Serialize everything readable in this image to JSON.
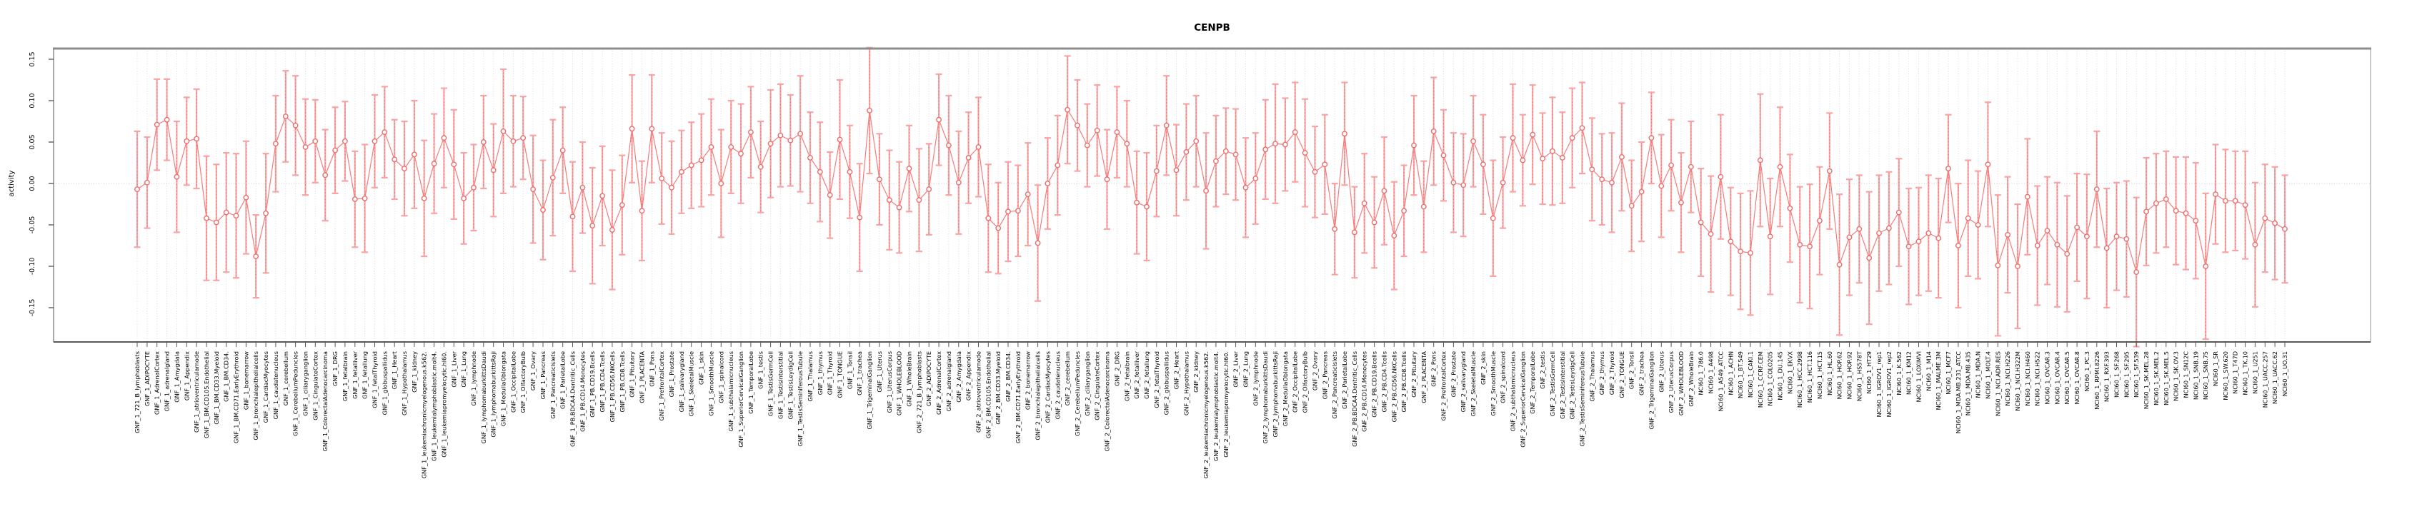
{
  "title": "CENPB",
  "chart_data": {
    "type": "line",
    "title": "CENPB",
    "ylabel": "activity",
    "ylim": [
      -0.186,
      0.163
    ],
    "yticks": [
      "-0.15",
      "-0.10",
      "-0.05",
      "0.00",
      "0.05",
      "0.10",
      "0.15"
    ],
    "ytick_values": [
      -0.15,
      -0.1,
      -0.05,
      0.0,
      0.05,
      0.1,
      0.15
    ],
    "grid": "vertical dotted line per category, dotted horizontal line at 0",
    "legend": "none",
    "marker": "open-circle with error bars",
    "colors": {
      "point": "#ef6a6a",
      "line": "#f47c7c",
      "error_bar": "#f9a4a4",
      "error_bar_dash": "#ef6767",
      "grid": "#d8d8d8",
      "zero_line": "#c9c9c9",
      "box": "#9a9a9a",
      "axis": "#404040",
      "text": "#000000"
    },
    "points": [
      [
        "GNF_1_721_B_lymphoblasts",
        -0.007,
        0.07
      ],
      [
        "GNF_1_ADIPOCYTE",
        0.001,
        0.055
      ],
      [
        "GNF_1_AdrenalCortex",
        0.071,
        0.055
      ],
      [
        "GNF_1_adrenalgland",
        0.077,
        0.049
      ],
      [
        "GNF_1_Amygdala",
        0.008,
        0.067
      ],
      [
        "GNF_1_Appendix",
        0.051,
        0.053
      ],
      [
        "GNF_1_atrioventricularnode",
        0.054,
        0.06
      ],
      [
        "GNF_1_BM.CD105.Endothelial",
        -0.042,
        0.075
      ],
      [
        "GNF_1_BM.CD33.Myeloid",
        -0.047,
        0.07
      ],
      [
        "GNF_1_BM.CD34.",
        -0.035,
        0.072
      ],
      [
        "GNF_1_BM.CD71.EarlyErythroid",
        -0.039,
        0.075
      ],
      [
        "GNF_1_bonemarrow",
        -0.017,
        0.068
      ],
      [
        "GNF_1_bronchialepithelialcells",
        -0.088,
        0.05
      ],
      [
        "GNF_1_CardiacMyocytes",
        -0.036,
        0.072
      ],
      [
        "GNF_1_caudatenucleus",
        0.048,
        0.058
      ],
      [
        "GNF_1_cerebellum",
        0.081,
        0.055
      ],
      [
        "GNF_1_CerebellumPeduncles",
        0.07,
        0.06
      ],
      [
        "GNF_1_ciliaryganglion",
        0.044,
        0.058
      ],
      [
        "GNF_1_CingulateCortex",
        0.051,
        0.05
      ],
      [
        "GNF_1_ColorectalAdenocarcinoma",
        0.01,
        0.055
      ],
      [
        "GNF_1_DRG",
        0.04,
        0.052
      ],
      [
        "GNF_1_fetalbrain",
        0.051,
        0.048
      ],
      [
        "GNF_1_fetalliver",
        -0.019,
        0.058
      ],
      [
        "GNF_1_fetallung",
        -0.018,
        0.065
      ],
      [
        "GNF_1_fetalThyroid",
        0.051,
        0.056
      ],
      [
        "GNF_1_globuspallidus",
        0.062,
        0.055
      ],
      [
        "GNF_1_Heart",
        0.029,
        0.048
      ],
      [
        "GNF_1_Hypothalamus",
        0.018,
        0.057
      ],
      [
        "GNF_1_kidney",
        0.035,
        0.065
      ],
      [
        "GNF_1_leukemiachronicmyelogenous.k562.",
        -0.018,
        0.07
      ],
      [
        "GNF_1_leukemialymphoblastic.molt4.",
        0.024,
        0.06
      ],
      [
        "GNF_1_leukemiapromyelocytic.hl60.",
        0.055,
        0.06
      ],
      [
        "GNF_1_Liver",
        0.023,
        0.066
      ],
      [
        "GNF_1_Lung",
        -0.018,
        0.055
      ],
      [
        "GNF_1_lymphnode",
        -0.005,
        0.052
      ],
      [
        "GNF_1_lymphomaburkittsDaudi",
        0.05,
        0.056
      ],
      [
        "GNF_1_lymphomaburkittsRaji",
        0.016,
        0.056
      ],
      [
        "GNF_1_MedullaOblongata",
        0.063,
        0.075
      ],
      [
        "GNF_1_OccipitalLobe",
        0.051,
        0.055
      ],
      [
        "GNF_1_OlfactoryBulb",
        0.055,
        0.05
      ],
      [
        "GNF_1_Ovary",
        -0.007,
        0.065
      ],
      [
        "GNF_1_Pancreas",
        -0.032,
        0.06
      ],
      [
        "GNF_1_PancreaticIslets",
        0.007,
        0.07
      ],
      [
        "GNF_1_ParietalLobe",
        0.04,
        0.052
      ],
      [
        "GNF_1_PB.BDCA4.Dentritic_Cells",
        -0.04,
        0.066
      ],
      [
        "GNF_1_PB.CD14.Monocytes",
        -0.005,
        0.055
      ],
      [
        "GNF_1_PB.CD19.Bcells",
        -0.051,
        0.07
      ],
      [
        "GNF_1_PB.CD4.Tcells",
        -0.015,
        0.06
      ],
      [
        "GNF_1_PB.CD56.NKCells",
        -0.056,
        0.072
      ],
      [
        "GNF_1_PB.CD8.Tcells",
        -0.026,
        0.06
      ],
      [
        "GNF_1_Pituitary",
        0.066,
        0.065
      ],
      [
        "GNF_1_PLACENTA",
        -0.033,
        0.06
      ],
      [
        "GNF_1_Pons",
        0.066,
        0.065
      ],
      [
        "GNF_1_PrefrontalCortex",
        0.006,
        0.055
      ],
      [
        "GNF_1_Prostate",
        -0.005,
        0.056
      ],
      [
        "GNF_1_salivarygland",
        0.014,
        0.05
      ],
      [
        "GNF_1_SkeletalMuscle",
        0.022,
        0.052
      ],
      [
        "GNF_1_skin",
        0.028,
        0.056
      ],
      [
        "GNF_1_SmoothMuscle",
        0.044,
        0.058
      ],
      [
        "GNF_1_spinalcord",
        0.0,
        0.065
      ],
      [
        "GNF_1_subthalamicnucleus",
        0.044,
        0.056
      ],
      [
        "GNF_1_SuperiorCervicalGanglion",
        0.036,
        0.06
      ],
      [
        "GNF_1_TemporalLobe",
        0.062,
        0.055
      ],
      [
        "GNF_1_testis",
        0.02,
        0.055
      ],
      [
        "GNF_1_TestisGermCell",
        0.048,
        0.065
      ],
      [
        "GNF_1_TestisInterstitial",
        0.058,
        0.062
      ],
      [
        "GNF_1_TestisLeydigCell",
        0.052,
        0.055
      ],
      [
        "GNF_1_TestisSeminiferousTubule",
        0.06,
        0.07
      ],
      [
        "GNF_1_Thalamus",
        0.031,
        0.055
      ],
      [
        "GNF_1_thymus",
        0.014,
        0.06
      ],
      [
        "GNF_1_Thyroid",
        -0.014,
        0.052
      ],
      [
        "GNF_1_TONGUE",
        0.053,
        0.072
      ],
      [
        "GNF_1_Tonsil",
        0.014,
        0.056
      ],
      [
        "GNF_1_trachea",
        -0.041,
        0.065
      ],
      [
        "GNF_1_TrigeminalGanglion",
        0.088,
        0.076
      ],
      [
        "GNF_1_Uterus",
        0.005,
        0.055
      ],
      [
        "GNF_1_UterusCorpus",
        -0.02,
        0.06
      ],
      [
        "GNF_1_WHOLEBLOOD",
        -0.029,
        0.055
      ],
      [
        "GNF_1_WholeBrain",
        0.018,
        0.052
      ],
      [
        "GNF_2_721_B_lymphoblasts",
        -0.02,
        0.062
      ],
      [
        "GNF_2_ADIPOCYTE",
        -0.007,
        0.055
      ],
      [
        "GNF_2_AdrenalCortex",
        0.077,
        0.055
      ],
      [
        "GNF_2_adrenalgland",
        0.046,
        0.06
      ],
      [
        "GNF_2_Amygdala",
        0.001,
        0.062
      ],
      [
        "GNF_2_Appendix",
        0.031,
        0.055
      ],
      [
        "GNF_2_atrioventricularnode",
        0.044,
        0.06
      ],
      [
        "GNF_2_BM.CD105.Endothelial",
        -0.042,
        0.065
      ],
      [
        "GNF_2_BM.CD33.Myeloid",
        -0.054,
        0.055
      ],
      [
        "GNF_2_BM.CD34.",
        -0.034,
        0.06
      ],
      [
        "GNF_2_BM.CD71.EarlyErythroid",
        -0.033,
        0.055
      ],
      [
        "GNF_2_bonemarrow",
        -0.013,
        0.062
      ],
      [
        "GNF_2_bronchialepithelialcells",
        -0.072,
        0.07
      ],
      [
        "GNF_2_CardiacMyocytes",
        0.0,
        0.055
      ],
      [
        "GNF_2_caudatenucleus",
        0.022,
        0.06
      ],
      [
        "GNF_2_cerebellum",
        0.089,
        0.065
      ],
      [
        "GNF_2_CerebellumPeduncles",
        0.07,
        0.055
      ],
      [
        "GNF_2_ciliaryganglion",
        0.046,
        0.05
      ],
      [
        "GNF_2_CingulateCortex",
        0.064,
        0.055
      ],
      [
        "GNF_2_ColorectalAdenocarcinoma",
        0.005,
        0.06
      ],
      [
        "GNF_2_DRG",
        0.062,
        0.055
      ],
      [
        "GNF_2_fetalbrain",
        0.048,
        0.052
      ],
      [
        "GNF_2_fetalliver",
        -0.023,
        0.062
      ],
      [
        "GNF_2_fetallung",
        -0.028,
        0.065
      ],
      [
        "GNF_2_fetalThyroid",
        0.015,
        0.055
      ],
      [
        "GNF_2_globuspallidus",
        0.07,
        0.06
      ],
      [
        "GNF_2_Heart",
        0.016,
        0.055
      ],
      [
        "GNF_2_Hypothalamus",
        0.038,
        0.058
      ],
      [
        "GNF_2_kidney",
        0.051,
        0.055
      ],
      [
        "GNF_2_leukemiachronicmyelogenous.k562.",
        -0.009,
        0.07
      ],
      [
        "GNF_2_leukemialymphoblastic.molt4.",
        0.027,
        0.055
      ],
      [
        "GNF_2_leukemiapromyelocytic.hl60.",
        0.039,
        0.052
      ],
      [
        "GNF_2_Liver",
        0.035,
        0.055
      ],
      [
        "GNF_2_Lung",
        -0.005,
        0.06
      ],
      [
        "GNF_2_lymphnode",
        0.006,
        0.055
      ],
      [
        "GNF_2_lymphomaburkittsDaudi",
        0.041,
        0.06
      ],
      [
        "GNF_2_lymphomaburkittsRaji",
        0.048,
        0.072
      ],
      [
        "GNF_2_MedullaOblongata",
        0.047,
        0.056
      ],
      [
        "GNF_2_OccipitalLobe",
        0.062,
        0.06
      ],
      [
        "GNF_2_OlfactoryBulb",
        0.037,
        0.065
      ],
      [
        "GNF_2_Ovary",
        0.014,
        0.055
      ],
      [
        "GNF_2_Pancreas",
        0.023,
        0.06
      ],
      [
        "GNF_2_PancreaticIslets",
        -0.055,
        0.055
      ],
      [
        "GNF_2_ParietalLobe",
        0.06,
        0.062
      ],
      [
        "GNF_2_PB.BDCA4.Dentritic_Cells",
        -0.059,
        0.055
      ],
      [
        "GNF_2_PB.CD14.Monocytes",
        -0.024,
        0.06
      ],
      [
        "GNF_2_PB.CD19.Bcells",
        -0.047,
        0.055
      ],
      [
        "GNF_2_PB.CD4.Tcells",
        -0.009,
        0.065
      ],
      [
        "GNF_2_PB.CD56.NKCells",
        -0.063,
        0.065
      ],
      [
        "GNF_2_PB.CD8.Tcells",
        -0.033,
        0.055
      ],
      [
        "GNF_2_Pituitary",
        0.046,
        0.06
      ],
      [
        "GNF_2_PLACENTA",
        -0.028,
        0.055
      ],
      [
        "GNF_2_Pons",
        0.063,
        0.065
      ],
      [
        "GNF_2_PrefrontalCortex",
        0.034,
        0.055
      ],
      [
        "GNF_2_Prostate",
        0.001,
        0.06
      ],
      [
        "GNF_2_salivarygland",
        -0.002,
        0.062
      ],
      [
        "GNF_2_SkeletalMuscle",
        0.051,
        0.055
      ],
      [
        "GNF_2_skin",
        0.023,
        0.06
      ],
      [
        "GNF_2_SmoothMuscle",
        -0.042,
        0.07
      ],
      [
        "GNF_2_spinalcord",
        0.001,
        0.055
      ],
      [
        "GNF_2_subthalamicnucleus",
        0.055,
        0.065
      ],
      [
        "GNF_2_SuperiorCervicalGanglion",
        0.028,
        0.055
      ],
      [
        "GNF_2_TemporalLobe",
        0.059,
        0.06
      ],
      [
        "GNF_2_testis",
        0.03,
        0.055
      ],
      [
        "GNF_2_TestisGermCell",
        0.039,
        0.065
      ],
      [
        "GNF_2_TestisInterstitial",
        0.031,
        0.055
      ],
      [
        "GNF_2_TestisLeydigCell",
        0.055,
        0.06
      ],
      [
        "GNF_2_TestisSeminiferousTubule",
        0.067,
        0.055
      ],
      [
        "GNF_2_Thalamus",
        0.017,
        0.062
      ],
      [
        "GNF_2_thymus",
        0.005,
        0.055
      ],
      [
        "GNF_2_Thyroid",
        0.001,
        0.06
      ],
      [
        "GNF_2_TONGUE",
        0.032,
        0.065
      ],
      [
        "GNF_2_Tonsil",
        -0.027,
        0.055
      ],
      [
        "GNF_2_trachea",
        -0.01,
        0.06
      ],
      [
        "GNF_2_TrigeminalGanglion",
        0.055,
        0.055
      ],
      [
        "GNF_2_Uterus",
        -0.003,
        0.062
      ],
      [
        "GNF_2_UterusCorpus",
        0.022,
        0.055
      ],
      [
        "GNF_2_WHOLEBLOOD",
        -0.023,
        0.06
      ],
      [
        "GNF_2_WholeBrain",
        0.02,
        0.055
      ],
      [
        "NCI60_1_786.0",
        -0.047,
        0.065
      ],
      [
        "NCI60_1_A498",
        -0.061,
        0.07
      ],
      [
        "NCI60_1_A549_ATCC",
        0.008,
        0.075
      ],
      [
        "NCI60_1_ACHN",
        -0.07,
        0.065
      ],
      [
        "NCI60_1_BT.549",
        -0.082,
        0.07
      ],
      [
        "NCI60_1_CAKI.1",
        -0.084,
        0.075
      ],
      [
        "NCI60_1_CCRF.CEM",
        0.028,
        0.08
      ],
      [
        "NCI60_1_COLO205",
        -0.064,
        0.07
      ],
      [
        "NCI60_1_DU.145",
        0.02,
        0.072
      ],
      [
        "NCI60_1_EKVX",
        -0.03,
        0.065
      ],
      [
        "NCI60_1_HCC.2998",
        -0.074,
        0.07
      ],
      [
        "NCI60_1_HCT.116",
        -0.076,
        0.075
      ],
      [
        "NCI60_1_HCT.15",
        -0.045,
        0.065
      ],
      [
        "NCI60_1_HL.60",
        0.015,
        0.07
      ],
      [
        "NCI60_1_HOP.62",
        -0.098,
        0.085
      ],
      [
        "NCI60_1_HOP.92",
        -0.065,
        0.07
      ],
      [
        "NCI60_1_HS578T",
        -0.055,
        0.065
      ],
      [
        "NCI60_1_HT29",
        -0.09,
        0.08
      ],
      [
        "NCI60_1_IGROV1_rep1",
        -0.06,
        0.07
      ],
      [
        "NCI60_1_IGROV1_rep2",
        -0.054,
        0.068
      ],
      [
        "NCI60_1_K.562",
        -0.035,
        0.065
      ],
      [
        "NCI60_1_KM12",
        -0.076,
        0.07
      ],
      [
        "NCI60_1_LOXIMVI",
        -0.07,
        0.065
      ],
      [
        "NCI60_1_M14",
        -0.06,
        0.07
      ],
      [
        "NCI60_1_MALME.3M",
        -0.066,
        0.072
      ],
      [
        "NCI60_1_MCF7",
        0.018,
        0.065
      ],
      [
        "NCI60_1_MDA.MB.231_ATCC",
        -0.075,
        0.075
      ],
      [
        "NCI60_1_MDA.MB.435",
        -0.042,
        0.07
      ],
      [
        "NCI60_1_MDA.N",
        -0.05,
        0.065
      ],
      [
        "NCI60_1_MOLT.4",
        0.023,
        0.075
      ],
      [
        "NCI60_1_NCI.ADR.RES",
        -0.099,
        0.085
      ],
      [
        "NCI60_1_NCI.H226",
        -0.062,
        0.07
      ],
      [
        "NCI60_1_NCI.H322M",
        -0.1,
        0.075
      ],
      [
        "NCI60_1_NCI.H460",
        -0.016,
        0.07
      ],
      [
        "NCI60_1_NCI.H522",
        -0.075,
        0.072
      ],
      [
        "NCI60_1_OVCAR.3",
        -0.057,
        0.065
      ],
      [
        "NCI60_1_OVCAR.4",
        -0.074,
        0.075
      ],
      [
        "NCI60_1_OVCAR.5",
        -0.085,
        0.07
      ],
      [
        "NCI60_1_OVCAR.8",
        -0.053,
        0.065
      ],
      [
        "NCI60_1_PC.3",
        -0.064,
        0.075
      ],
      [
        "NCI60_1_RPMI.8226",
        -0.007,
        0.07
      ],
      [
        "NCI60_1_RXF.393",
        -0.078,
        0.072
      ],
      [
        "NCI60_1_SF.268",
        -0.064,
        0.065
      ],
      [
        "NCI60_1_SF.295",
        -0.067,
        0.07
      ],
      [
        "NCI60_1_SF.539",
        -0.107,
        0.09
      ],
      [
        "NCI60_1_SK.MEL.28",
        -0.034,
        0.065
      ],
      [
        "NCI60_1_SK.MEL.2",
        -0.024,
        0.06
      ],
      [
        "NCI60_1_SK.MEL.5",
        -0.019,
        0.058
      ],
      [
        "NCI60_1_SK.OV.3",
        -0.033,
        0.065
      ],
      [
        "NCI60_1_SN12C",
        -0.036,
        0.068
      ],
      [
        "NCI60_1_SNB.19",
        -0.045,
        0.07
      ],
      [
        "NCI60_1_SNB.75",
        -0.1,
        0.088
      ],
      [
        "NCI60_1_SR",
        -0.013,
        0.06
      ],
      [
        "NCI60_1_SW.620",
        -0.021,
        0.062
      ],
      [
        "NCI60_1_T47D",
        -0.021,
        0.06
      ],
      [
        "NCI60_1_TK.10",
        -0.026,
        0.065
      ],
      [
        "NCI60_1_U251",
        -0.074,
        0.075
      ],
      [
        "NCI60_1_UACC.257",
        -0.042,
        0.065
      ],
      [
        "NCI60_1_UACC.62",
        -0.048,
        0.068
      ],
      [
        "NCI60_1_UO.31",
        -0.055,
        0.065
      ]
    ]
  }
}
